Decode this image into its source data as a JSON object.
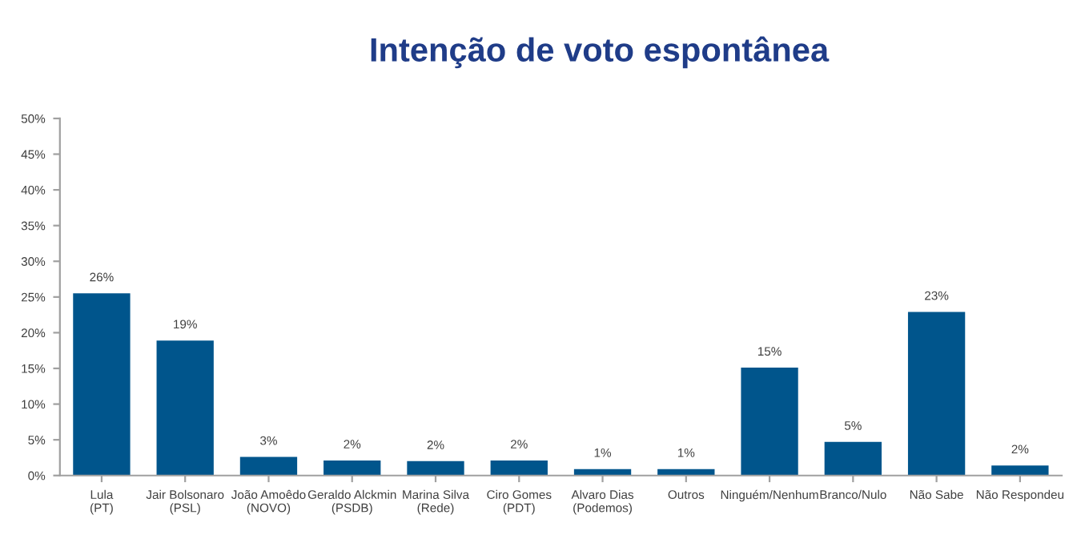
{
  "chart_data": {
    "type": "bar",
    "title": "Intenção de voto espontânea",
    "categories": [
      "Lula\n(PT)",
      "Jair Bolsonaro\n(PSL)",
      "João Amoêdo\n(NOVO)",
      "Geraldo Alckmin\n(PSDB)",
      "Marina Silva\n(Rede)",
      "Ciro Gomes\n(PDT)",
      "Alvaro Dias\n(Podemos)",
      "Outros",
      "Ninguém/Nenhum",
      "Branco/Nulo",
      "Não Sabe",
      "Não Respondeu"
    ],
    "values": [
      25.6,
      19.0,
      2.7,
      2.2,
      2.1,
      2.2,
      1.0,
      1.0,
      15.2,
      4.8,
      23.0,
      1.5
    ],
    "value_labels": [
      "26%",
      "19%",
      "3%",
      "2%",
      "2%",
      "2%",
      "1%",
      "1%",
      "15%",
      "5%",
      "23%",
      "2%"
    ],
    "color": "#00558c",
    "ylim": [
      0,
      50
    ],
    "yticks": [
      {
        "value": 0,
        "label": "0%"
      },
      {
        "value": 5,
        "label": "5%"
      },
      {
        "value": 10,
        "label": "10%"
      },
      {
        "value": 15,
        "label": "15%"
      },
      {
        "value": 20,
        "label": "20%"
      },
      {
        "value": 25,
        "label": "25%"
      },
      {
        "value": 30,
        "label": "30%"
      },
      {
        "value": 35,
        "label": "35%"
      },
      {
        "value": 40,
        "label": "40%"
      },
      {
        "value": 45,
        "label": "45%"
      },
      {
        "value": 50,
        "label": "50%"
      }
    ],
    "grid": false,
    "legend": false
  }
}
